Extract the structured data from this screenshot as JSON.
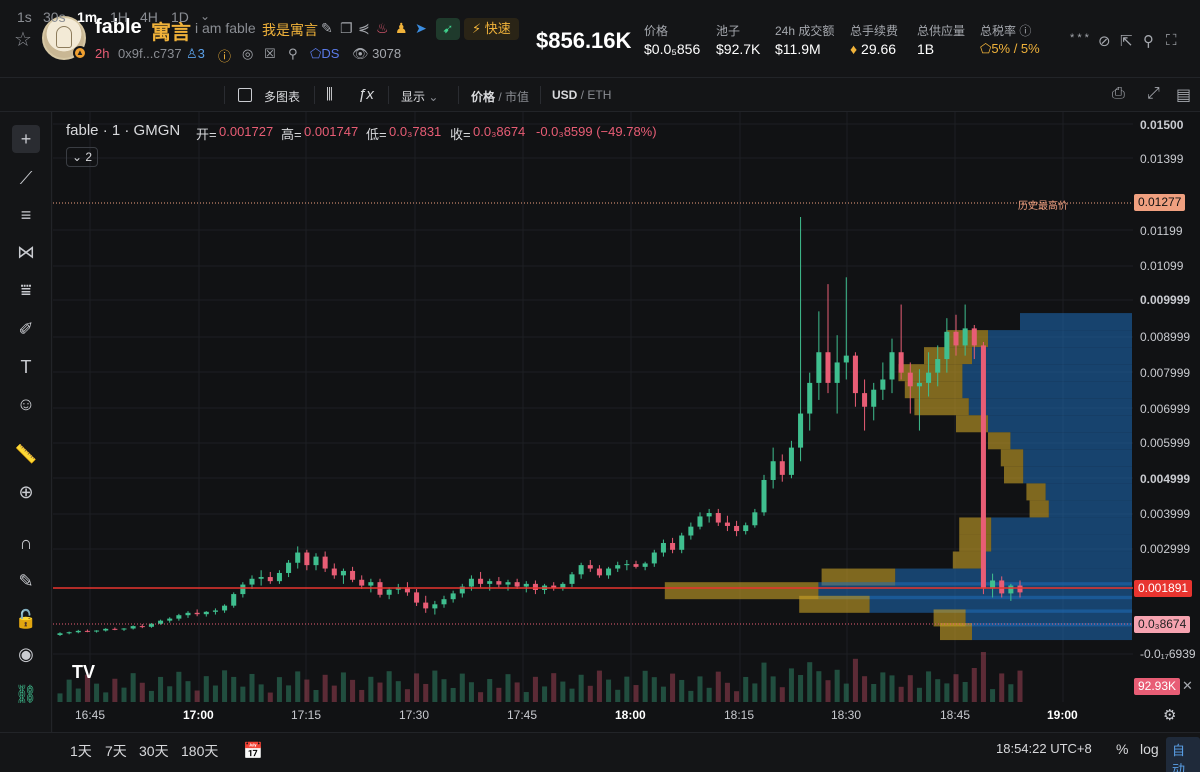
{
  "header": {
    "name": "fable",
    "name_cn": "寓言",
    "description": "i am fable",
    "description_cn": "我是寓言",
    "age": "2h",
    "address": "0x9f...c737",
    "holders_icon_count": "3",
    "ds_label": "DS",
    "views": "3078",
    "quick_label": "快速",
    "market_cap": "$856.16K",
    "stats": [
      {
        "label": "价格",
        "value": "$0.0₅856"
      },
      {
        "label": "池子",
        "value": "$92.7K"
      },
      {
        "label": "24h 成交额",
        "value": "$11.9M"
      },
      {
        "label": "总手续费",
        "value": "29.66"
      },
      {
        "label": "总供应量",
        "value": "1B"
      },
      {
        "label": "总税率",
        "value": "5% / 5%"
      }
    ]
  },
  "toolbar": {
    "timeframes": [
      "1s",
      "30s",
      "1m",
      "1H",
      "4H",
      "1D"
    ],
    "active_timeframe": "1m",
    "multi_chart": "多图表",
    "display": "显示",
    "price_label": "价格",
    "mcap_label": "市值",
    "usd_label": "USD",
    "eth_label": "ETH"
  },
  "legend": {
    "title": "fable · 1 · GMGN",
    "open_label": "开=",
    "open": "0.001727",
    "high_label": "高=",
    "high": "0.001747",
    "low_label": "低=",
    "low": "0.0₃7831",
    "close_label": "收=",
    "close": "0.0₃8674",
    "change": "-0.0₃8599 (−49.78%)",
    "collapse_count": "2"
  },
  "chart_data": {
    "type": "candlestick",
    "title": "fable · 1 · GMGN",
    "y_ticks": [
      "0.01500",
      "0.01399",
      "0.01199",
      "0.01099",
      "0.009999",
      "0.008999",
      "0.007999",
      "0.006999",
      "0.005999",
      "0.004999",
      "0.003999",
      "0.002999",
      "-0.0₁₇6939"
    ],
    "ath_label": "历史最高价",
    "ath_value": "0.01277",
    "current_price": "0.001891",
    "close_price": "0.0₃8674",
    "volume_label": "92.93K",
    "x_ticks": [
      "16:45",
      "17:00",
      "17:15",
      "17:30",
      "17:45",
      "18:00",
      "18:15",
      "18:30",
      "18:45",
      "19:00"
    ],
    "ylim": [
      0,
      0.0155
    ],
    "colors": {
      "up": "#3fbf8f",
      "down": "#e85d75",
      "ath": "#f0a080",
      "line": "#e8342f"
    },
    "candles": [
      [
        0.0005,
        0.00058,
        0.00047,
        0.00055
      ],
      [
        0.00055,
        0.0006,
        0.00052,
        0.00058
      ],
      [
        0.00058,
        0.00065,
        0.00055,
        0.00062
      ],
      [
        0.00062,
        0.00066,
        0.00058,
        0.0006
      ],
      [
        0.0006,
        0.00064,
        0.00057,
        0.00063
      ],
      [
        0.00063,
        0.0007,
        0.0006,
        0.00068
      ],
      [
        0.00068,
        0.00072,
        0.00064,
        0.00066
      ],
      [
        0.00066,
        0.0007,
        0.00062,
        0.00069
      ],
      [
        0.00069,
        0.00078,
        0.00066,
        0.00076
      ],
      [
        0.00076,
        0.00082,
        0.0007,
        0.00074
      ],
      [
        0.00074,
        0.00085,
        0.00071,
        0.00083
      ],
      [
        0.00083,
        0.00095,
        0.0008,
        0.00092
      ],
      [
        0.00092,
        0.00102,
        0.00086,
        0.00098
      ],
      [
        0.00098,
        0.00112,
        0.00092,
        0.00108
      ],
      [
        0.00108,
        0.0012,
        0.001,
        0.00115
      ],
      [
        0.00115,
        0.00125,
        0.00105,
        0.00111
      ],
      [
        0.00111,
        0.0012,
        0.00104,
        0.00118
      ],
      [
        0.00118,
        0.00128,
        0.0011,
        0.00122
      ],
      [
        0.00122,
        0.0014,
        0.00115,
        0.00136
      ],
      [
        0.00136,
        0.00175,
        0.0013,
        0.0017
      ],
      [
        0.0017,
        0.00205,
        0.0016,
        0.00198
      ],
      [
        0.00198,
        0.00225,
        0.00185,
        0.00215
      ],
      [
        0.00215,
        0.0024,
        0.00195,
        0.0022
      ],
      [
        0.0022,
        0.00235,
        0.002,
        0.00208
      ],
      [
        0.00208,
        0.0024,
        0.002,
        0.00232
      ],
      [
        0.00232,
        0.0027,
        0.0022,
        0.00262
      ],
      [
        0.00262,
        0.0031,
        0.00245,
        0.00292
      ],
      [
        0.00292,
        0.003,
        0.0024,
        0.00255
      ],
      [
        0.00255,
        0.0029,
        0.0024,
        0.0028
      ],
      [
        0.0028,
        0.00295,
        0.00235,
        0.00245
      ],
      [
        0.00245,
        0.0026,
        0.00215,
        0.00225
      ],
      [
        0.00225,
        0.00245,
        0.002,
        0.00238
      ],
      [
        0.00238,
        0.0025,
        0.00205,
        0.00212
      ],
      [
        0.00212,
        0.00225,
        0.00185,
        0.00195
      ],
      [
        0.00195,
        0.00215,
        0.00175,
        0.00205
      ],
      [
        0.00205,
        0.00215,
        0.0016,
        0.00168
      ],
      [
        0.00168,
        0.0019,
        0.00155,
        0.00183
      ],
      [
        0.00183,
        0.002,
        0.0017,
        0.0019
      ],
      [
        0.0019,
        0.00205,
        0.00165,
        0.00175
      ],
      [
        0.00175,
        0.00185,
        0.00135,
        0.00145
      ],
      [
        0.00145,
        0.00165,
        0.00115,
        0.00128
      ],
      [
        0.00128,
        0.0015,
        0.0011,
        0.0014
      ],
      [
        0.0014,
        0.00165,
        0.0013,
        0.00155
      ],
      [
        0.00155,
        0.0018,
        0.00145,
        0.00172
      ],
      [
        0.00172,
        0.002,
        0.0016,
        0.00192
      ],
      [
        0.00192,
        0.00225,
        0.0018,
        0.00215
      ],
      [
        0.00215,
        0.00235,
        0.0019,
        0.002
      ],
      [
        0.002,
        0.00215,
        0.0018,
        0.00208
      ],
      [
        0.00208,
        0.0022,
        0.0019,
        0.00198
      ],
      [
        0.00198,
        0.00212,
        0.0018,
        0.00205
      ],
      [
        0.00205,
        0.00215,
        0.00185,
        0.00192
      ],
      [
        0.00192,
        0.00208,
        0.00175,
        0.002
      ],
      [
        0.002,
        0.0021,
        0.0017,
        0.00182
      ],
      [
        0.00182,
        0.002,
        0.0017,
        0.00195
      ],
      [
        0.00195,
        0.00205,
        0.0018,
        0.00188
      ],
      [
        0.00188,
        0.00205,
        0.0018,
        0.002
      ],
      [
        0.002,
        0.00235,
        0.0019,
        0.00228
      ],
      [
        0.00228,
        0.00262,
        0.00215,
        0.00255
      ],
      [
        0.00255,
        0.0027,
        0.00235,
        0.00245
      ],
      [
        0.00245,
        0.00255,
        0.00218,
        0.00225
      ],
      [
        0.00225,
        0.0025,
        0.00215,
        0.00245
      ],
      [
        0.00245,
        0.00265,
        0.00235,
        0.00255
      ],
      [
        0.00255,
        0.0027,
        0.0024,
        0.00258
      ],
      [
        0.00258,
        0.00268,
        0.00245,
        0.0025
      ],
      [
        0.0025,
        0.00265,
        0.0024,
        0.0026
      ],
      [
        0.0026,
        0.003,
        0.0025,
        0.00292
      ],
      [
        0.00292,
        0.0033,
        0.0028,
        0.0032
      ],
      [
        0.0032,
        0.00335,
        0.0029,
        0.003
      ],
      [
        0.003,
        0.0035,
        0.0029,
        0.00342
      ],
      [
        0.00342,
        0.0038,
        0.0033,
        0.00368
      ],
      [
        0.00368,
        0.0041,
        0.0036,
        0.00398
      ],
      [
        0.00398,
        0.0042,
        0.0038,
        0.00408
      ],
      [
        0.00408,
        0.0042,
        0.0037,
        0.0038
      ],
      [
        0.0038,
        0.004,
        0.00355,
        0.0037
      ],
      [
        0.0037,
        0.00385,
        0.0034,
        0.00355
      ],
      [
        0.00355,
        0.0038,
        0.00345,
        0.00372
      ],
      [
        0.00372,
        0.0042,
        0.00365,
        0.0041
      ],
      [
        0.0041,
        0.0052,
        0.004,
        0.00505
      ],
      [
        0.00505,
        0.006,
        0.0048,
        0.0056
      ],
      [
        0.0056,
        0.0058,
        0.005,
        0.0052
      ],
      [
        0.0052,
        0.0062,
        0.0051,
        0.006
      ],
      [
        0.006,
        0.01277,
        0.0056,
        0.007
      ],
      [
        0.007,
        0.0082,
        0.0065,
        0.0079
      ],
      [
        0.0079,
        0.01,
        0.0074,
        0.0088
      ],
      [
        0.0088,
        0.0108,
        0.0076,
        0.0079
      ],
      [
        0.0079,
        0.0093,
        0.007,
        0.0085
      ],
      [
        0.0085,
        0.011,
        0.008,
        0.0087
      ],
      [
        0.0087,
        0.0088,
        0.0072,
        0.0076
      ],
      [
        0.0076,
        0.008,
        0.0065,
        0.0072
      ],
      [
        0.0072,
        0.0079,
        0.0068,
        0.0077
      ],
      [
        0.0077,
        0.0085,
        0.0074,
        0.008
      ],
      [
        0.008,
        0.0092,
        0.0076,
        0.0088
      ],
      [
        0.0088,
        0.0102,
        0.008,
        0.0082
      ],
      [
        0.0082,
        0.0085,
        0.007,
        0.0078
      ],
      [
        0.0078,
        0.0083,
        0.0065,
        0.0079
      ],
      [
        0.0079,
        0.0088,
        0.0075,
        0.0082
      ],
      [
        0.0082,
        0.009,
        0.0078,
        0.0086
      ],
      [
        0.0086,
        0.0098,
        0.0082,
        0.0094
      ],
      [
        0.0094,
        0.0099,
        0.0087,
        0.009
      ],
      [
        0.009,
        0.0102,
        0.0087,
        0.0095
      ],
      [
        0.0095,
        0.0096,
        0.0086,
        0.009
      ],
      [
        0.009,
        0.0091,
        0.0017,
        0.00186
      ],
      [
        0.00186,
        0.0023,
        0.0016,
        0.0021
      ],
      [
        0.0021,
        0.00222,
        0.0016,
        0.00172
      ],
      [
        0.00172,
        0.002,
        0.0015,
        0.00195
      ],
      [
        0.00195,
        0.0021,
        0.0016,
        0.00175
      ]
    ],
    "volume_profile": [
      {
        "price": 0.0097,
        "up": 0.0,
        "down": 0.35
      },
      {
        "price": 0.0092,
        "up": 0.13,
        "down": 0.45
      },
      {
        "price": 0.0087,
        "up": 0.15,
        "down": 0.5
      },
      {
        "price": 0.0082,
        "up": 0.2,
        "down": 0.53
      },
      {
        "price": 0.0077,
        "up": 0.18,
        "down": 0.53
      },
      {
        "price": 0.0072,
        "up": 0.17,
        "down": 0.51
      },
      {
        "price": 0.0067,
        "up": 0.1,
        "down": 0.45
      },
      {
        "price": 0.0062,
        "up": 0.07,
        "down": 0.38
      },
      {
        "price": 0.0057,
        "up": 0.07,
        "down": 0.34
      },
      {
        "price": 0.0052,
        "up": 0.06,
        "down": 0.34
      },
      {
        "price": 0.0047,
        "up": 0.06,
        "down": 0.27
      },
      {
        "price": 0.0042,
        "up": 0.06,
        "down": 0.26
      },
      {
        "price": 0.0037,
        "up": 0.1,
        "down": 0.44
      },
      {
        "price": 0.0032,
        "up": 0.1,
        "down": 0.44
      },
      {
        "price": 0.0027,
        "up": 0.09,
        "down": 0.47
      },
      {
        "price": 0.0022,
        "up": 0.23,
        "down": 0.74
      },
      {
        "price": 0.0018,
        "up": 0.48,
        "down": 0.98
      },
      {
        "price": 0.0014,
        "up": 0.22,
        "down": 0.82
      },
      {
        "price": 0.001,
        "up": 0.1,
        "down": 0.52
      },
      {
        "price": 0.0006,
        "up": 0.1,
        "down": 0.5
      }
    ]
  },
  "footer": {
    "ranges": [
      "1天",
      "7天",
      "30天",
      "180天"
    ],
    "clock": "18:54:22 UTC+8",
    "percent": "%",
    "log": "log",
    "auto": "自动"
  }
}
